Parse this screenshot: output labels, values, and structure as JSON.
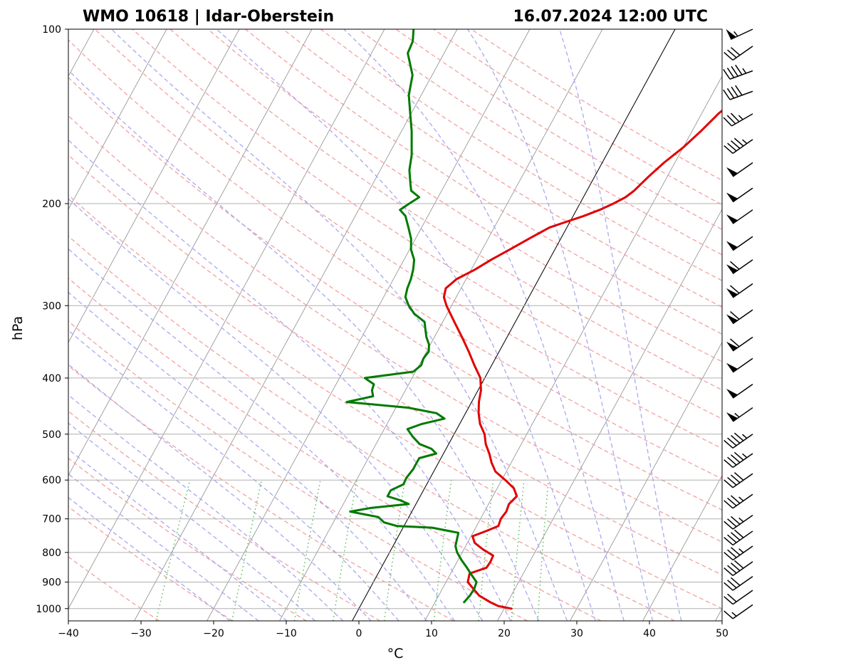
{
  "chart_data": {
    "type": "line",
    "diagram": "skew-T log-P",
    "title_left": "WMO 10618 | Idar-Oberstein",
    "title_right": "16.07.2024 12:00 UTC",
    "xlabel": "°C",
    "ylabel": "hPa",
    "xlim": [
      -40,
      50
    ],
    "ylim": [
      1050,
      100
    ],
    "y_scale": "log",
    "x_ticks": [
      -40,
      -30,
      -20,
      -10,
      0,
      10,
      20,
      30,
      40,
      50
    ],
    "x_tick_labels": [
      "−40",
      "−30",
      "−20",
      "−10",
      "0",
      "10",
      "20",
      "30",
      "40",
      "50"
    ],
    "y_ticks": [
      1000,
      900,
      800,
      700,
      600,
      500,
      400,
      300,
      200,
      100
    ],
    "y_tick_labels": [
      "1000",
      "900",
      "800",
      "700",
      "600",
      "500",
      "400",
      "300",
      "200",
      "100"
    ],
    "grid": true,
    "background_lines": {
      "isotherms": "gray solid",
      "dry_adiabats": "red dashed",
      "moist_adiabats": "blue dashed",
      "mixing_ratio": "green dotted",
      "zero_isotherm": "black solid"
    },
    "series": [
      {
        "role": "temperature",
        "color": "#e00000",
        "points": [
          [
            1000,
            21.0
          ],
          [
            990,
            19.0
          ],
          [
            975,
            17.6
          ],
          [
            950,
            15.6
          ],
          [
            925,
            14.3
          ],
          [
            900,
            13.0
          ],
          [
            870,
            12.6
          ],
          [
            850,
            14.5
          ],
          [
            830,
            14.6
          ],
          [
            810,
            14.5
          ],
          [
            790,
            12.6
          ],
          [
            770,
            11.0
          ],
          [
            750,
            10.2
          ],
          [
            735,
            11.7
          ],
          [
            720,
            13.0
          ],
          [
            700,
            12.8
          ],
          [
            680,
            13.0
          ],
          [
            660,
            12.8
          ],
          [
            640,
            13.3
          ],
          [
            620,
            12.3
          ],
          [
            600,
            10.5
          ],
          [
            580,
            8.5
          ],
          [
            560,
            7.3
          ],
          [
            540,
            6.3
          ],
          [
            520,
            5.1
          ],
          [
            500,
            4.2
          ],
          [
            480,
            2.8
          ],
          [
            460,
            1.8
          ],
          [
            440,
            1.0
          ],
          [
            420,
            0.4
          ],
          [
            400,
            -0.6
          ],
          [
            380,
            -2.4
          ],
          [
            360,
            -4.2
          ],
          [
            340,
            -6.2
          ],
          [
            320,
            -8.4
          ],
          [
            300,
            -10.7
          ],
          [
            290,
            -11.7
          ],
          [
            280,
            -12.1
          ],
          [
            270,
            -11.3
          ],
          [
            260,
            -9.5
          ],
          [
            250,
            -8.0
          ],
          [
            240,
            -6.2
          ],
          [
            230,
            -4.4
          ],
          [
            220,
            -2.4
          ],
          [
            215,
            -0.5
          ],
          [
            210,
            1.5
          ],
          [
            205,
            3.2
          ],
          [
            200,
            4.6
          ],
          [
            195,
            5.8
          ],
          [
            190,
            6.5
          ],
          [
            180,
            7.4
          ],
          [
            170,
            8.5
          ],
          [
            160,
            10.0
          ],
          [
            150,
            11.2
          ],
          [
            140,
            12.3
          ],
          [
            130,
            14.0
          ],
          [
            120,
            15.0
          ],
          [
            115,
            15.2
          ],
          [
            110,
            16.3
          ],
          [
            105,
            17.5
          ],
          [
            100,
            18.4
          ]
        ]
      },
      {
        "role": "dewpoint",
        "color": "#007a00",
        "points": [
          [
            975,
            14.0
          ],
          [
            950,
            14.3
          ],
          [
            925,
            14.4
          ],
          [
            900,
            14.2
          ],
          [
            875,
            13.0
          ],
          [
            850,
            11.8
          ],
          [
            825,
            10.5
          ],
          [
            800,
            9.3
          ],
          [
            780,
            8.6
          ],
          [
            760,
            8.3
          ],
          [
            740,
            8.0
          ],
          [
            725,
            4.0
          ],
          [
            720,
            -1.0
          ],
          [
            710,
            -3.0
          ],
          [
            695,
            -4.2
          ],
          [
            680,
            -8.5
          ],
          [
            670,
            -5.8
          ],
          [
            660,
            -1.0
          ],
          [
            650,
            -2.5
          ],
          [
            640,
            -4.5
          ],
          [
            625,
            -4.5
          ],
          [
            610,
            -3.2
          ],
          [
            595,
            -3.3
          ],
          [
            575,
            -3.0
          ],
          [
            560,
            -3.0
          ],
          [
            550,
            -3.0
          ],
          [
            540,
            -1.0
          ],
          [
            530,
            -2.0
          ],
          [
            520,
            -4.0
          ],
          [
            505,
            -5.5
          ],
          [
            490,
            -6.8
          ],
          [
            480,
            -5.2
          ],
          [
            470,
            -2.5
          ],
          [
            460,
            -4.0
          ],
          [
            450,
            -8.3
          ],
          [
            440,
            -17.2
          ],
          [
            430,
            -14.0
          ],
          [
            420,
            -14.6
          ],
          [
            410,
            -14.8
          ],
          [
            400,
            -16.5
          ],
          [
            390,
            -10.3
          ],
          [
            380,
            -9.7
          ],
          [
            370,
            -9.9
          ],
          [
            360,
            -9.7
          ],
          [
            350,
            -10.2
          ],
          [
            340,
            -11.1
          ],
          [
            330,
            -11.8
          ],
          [
            320,
            -12.5
          ],
          [
            310,
            -14.5
          ],
          [
            300,
            -15.9
          ],
          [
            290,
            -17.0
          ],
          [
            280,
            -17.4
          ],
          [
            270,
            -17.6
          ],
          [
            260,
            -18.0
          ],
          [
            250,
            -18.6
          ],
          [
            240,
            -19.8
          ],
          [
            230,
            -20.6
          ],
          [
            220,
            -21.8
          ],
          [
            210,
            -23.1
          ],
          [
            205,
            -24.3
          ],
          [
            200,
            -23.5
          ],
          [
            195,
            -22.6
          ],
          [
            190,
            -24.2
          ],
          [
            185,
            -24.8
          ],
          [
            175,
            -26.0
          ],
          [
            165,
            -26.8
          ],
          [
            150,
            -28.6
          ],
          [
            140,
            -30.1
          ],
          [
            130,
            -31.7
          ],
          [
            120,
            -32.7
          ],
          [
            110,
            -35.0
          ],
          [
            105,
            -35.2
          ],
          [
            100,
            -36.0
          ]
        ]
      }
    ],
    "wind_barbs": [
      {
        "p": 100,
        "dir": 245,
        "kt": 55
      },
      {
        "p": 107,
        "dir": 235,
        "kt": 30
      },
      {
        "p": 118,
        "dir": 250,
        "kt": 45
      },
      {
        "p": 128,
        "dir": 250,
        "kt": 40
      },
      {
        "p": 140,
        "dir": 240,
        "kt": 35
      },
      {
        "p": 155,
        "dir": 235,
        "kt": 45
      },
      {
        "p": 170,
        "dir": 235,
        "kt": 50
      },
      {
        "p": 188,
        "dir": 235,
        "kt": 50
      },
      {
        "p": 205,
        "dir": 235,
        "kt": 50
      },
      {
        "p": 228,
        "dir": 235,
        "kt": 50
      },
      {
        "p": 250,
        "dir": 235,
        "kt": 60
      },
      {
        "p": 275,
        "dir": 235,
        "kt": 60
      },
      {
        "p": 305,
        "dir": 235,
        "kt": 60
      },
      {
        "p": 340,
        "dir": 235,
        "kt": 60
      },
      {
        "p": 370,
        "dir": 235,
        "kt": 50
      },
      {
        "p": 410,
        "dir": 235,
        "kt": 50
      },
      {
        "p": 450,
        "dir": 235,
        "kt": 55
      },
      {
        "p": 500,
        "dir": 235,
        "kt": 45
      },
      {
        "p": 540,
        "dir": 235,
        "kt": 45
      },
      {
        "p": 585,
        "dir": 235,
        "kt": 40
      },
      {
        "p": 635,
        "dir": 235,
        "kt": 35
      },
      {
        "p": 690,
        "dir": 235,
        "kt": 35
      },
      {
        "p": 735,
        "dir": 235,
        "kt": 40
      },
      {
        "p": 780,
        "dir": 235,
        "kt": 35
      },
      {
        "p": 830,
        "dir": 235,
        "kt": 40
      },
      {
        "p": 880,
        "dir": 235,
        "kt": 30
      },
      {
        "p": 930,
        "dir": 235,
        "kt": 20
      },
      {
        "p": 985,
        "dir": 235,
        "kt": 15
      }
    ]
  }
}
